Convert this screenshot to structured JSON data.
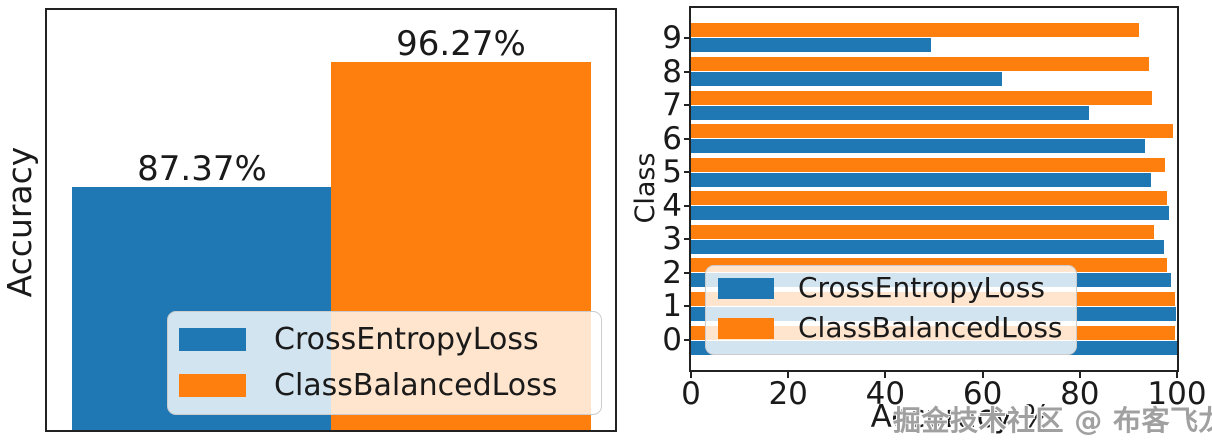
{
  "watermark": {
    "text": "掘金技术社区 @ 布客飞龙"
  },
  "colors": {
    "cross_entropy_blue": "#1f77b4",
    "class_balanced_orange": "#ff7f0e",
    "axis": "#222222",
    "legend_background": "rgba(255,255,255,0.8)"
  },
  "chart_data": [
    {
      "id": "overall-accuracy",
      "type": "bar",
      "title": "",
      "ylabel": "Accuracy",
      "xlabel": "",
      "categories": [
        "CrossEntropyLoss",
        "ClassBalancedLoss"
      ],
      "values": [
        87.37,
        96.27
      ],
      "value_labels": [
        "87.37%",
        "96.27%"
      ],
      "colors": [
        "#1f77b4",
        "#ff7f0e"
      ],
      "ylim": [
        70,
        100
      ],
      "grid": false,
      "legend": [
        "CrossEntropyLoss",
        "ClassBalancedLoss"
      ],
      "legend_position": "lower center"
    },
    {
      "id": "per-class-accuracy",
      "type": "bar-horizontal",
      "title": "",
      "xlabel": "Accuracy %",
      "ylabel": "Class",
      "categories": [
        "0",
        "1",
        "2",
        "3",
        "4",
        "5",
        "6",
        "7",
        "8",
        "9"
      ],
      "series": [
        {
          "name": "CrossEntropyLoss",
          "color": "#1f77b4",
          "values": [
            99.9,
            99.8,
            98.7,
            97.3,
            98.3,
            94.7,
            93.4,
            81.8,
            64.0,
            49.3
          ]
        },
        {
          "name": "ClassBalancedLoss",
          "color": "#ff7f0e",
          "values": [
            99.6,
            99.5,
            98.0,
            95.3,
            98.0,
            97.6,
            99.2,
            94.9,
            94.2,
            92.1
          ]
        }
      ],
      "xlim": [
        0,
        100
      ],
      "x_ticks": [
        "0",
        "20",
        "40",
        "60",
        "80",
        "100"
      ],
      "grid": false,
      "legend": [
        "CrossEntropyLoss",
        "ClassBalancedLoss"
      ],
      "legend_position": "lower left"
    }
  ]
}
